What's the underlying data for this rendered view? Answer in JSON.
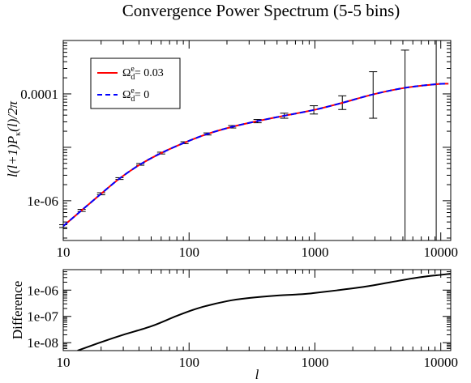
{
  "chart_data": [
    {
      "type": "line",
      "title": "Convergence Power Spectrum (5-5 bins)",
      "xlabel": "",
      "ylabel": "l(l+1)P_κ(l)/2π",
      "xscale": "log",
      "yscale": "log",
      "xlim": [
        10,
        12000
      ],
      "ylim": [
        1.8e-07,
        0.001
      ],
      "x_tick_labels": [
        "10",
        "100",
        "1000",
        "10000"
      ],
      "y_tick_labels": [
        "1e-06",
        "0.0001"
      ],
      "legend": {
        "placement": "top-left",
        "entries": [
          {
            "label": "Ω_d^e = 0.03",
            "color": "#ff0000",
            "style": "solid"
          },
          {
            "label": "Ω_d^e = 0",
            "color": "#0000ff",
            "style": "dashed"
          }
        ]
      },
      "series": [
        {
          "label": "Ω_d^e = 0.03",
          "color": "#ff0000",
          "style": "solid",
          "x": [
            10,
            14,
            20,
            28,
            41,
            60,
            92,
            140,
            220,
            350,
            570,
            980,
            1650,
            2900,
            5200,
            9200,
            11500
          ],
          "y": [
            3.35e-07,
            6.6e-07,
            1.35e-06,
            2.6e-06,
            4.8e-06,
            7.8e-06,
            1.22e-05,
            1.78e-05,
            2.42e-05,
            3.1e-05,
            3.9e-05,
            5e-05,
            6.8e-05,
            9.8e-05,
            0.00013,
            0.000152,
            0.000155
          ]
        },
        {
          "label": "Ω_d^e = 0",
          "color": "#0000ff",
          "style": "dashed",
          "x": [
            10,
            14,
            20,
            28,
            41,
            60,
            92,
            140,
            220,
            350,
            570,
            980,
            1650,
            2900,
            5200,
            9200,
            11500
          ],
          "y": [
            3.35e-07,
            6.6e-07,
            1.35e-06,
            2.6e-06,
            4.8e-06,
            7.8e-06,
            1.22e-05,
            1.78e-05,
            2.42e-05,
            3.1e-05,
            3.9e-05,
            5e-05,
            6.8e-05,
            9.8e-05,
            0.00013,
            0.000152,
            0.000155
          ]
        }
      ],
      "error_bars": [
        {
          "x": 10,
          "y": 3.35e-07,
          "lo": 3.15e-07,
          "hi": 3.55e-07
        },
        {
          "x": 14,
          "y": 6.6e-07,
          "lo": 6.3e-07,
          "hi": 6.9e-07
        },
        {
          "x": 20,
          "y": 1.35e-06,
          "lo": 1.29e-06,
          "hi": 1.41e-06
        },
        {
          "x": 28,
          "y": 2.6e-06,
          "lo": 2.5e-06,
          "hi": 2.7e-06
        },
        {
          "x": 41,
          "y": 4.8e-06,
          "lo": 4.62e-06,
          "hi": 4.98e-06
        },
        {
          "x": 60,
          "y": 7.8e-06,
          "lo": 7.5e-06,
          "hi": 8.1e-06
        },
        {
          "x": 92,
          "y": 1.22e-05,
          "lo": 1.17e-05,
          "hi": 1.27e-05
        },
        {
          "x": 140,
          "y": 1.78e-05,
          "lo": 1.7e-05,
          "hi": 1.86e-05
        },
        {
          "x": 220,
          "y": 2.42e-05,
          "lo": 2.3e-05,
          "hi": 2.55e-05
        },
        {
          "x": 350,
          "y": 3.1e-05,
          "lo": 2.88e-05,
          "hi": 3.32e-05
        },
        {
          "x": 570,
          "y": 3.9e-05,
          "lo": 3.5e-05,
          "hi": 4.35e-05
        },
        {
          "x": 980,
          "y": 5e-05,
          "lo": 4.2e-05,
          "hi": 6e-05
        },
        {
          "x": 1650,
          "y": 6.8e-05,
          "lo": 5.1e-05,
          "hi": 9.2e-05
        },
        {
          "x": 2900,
          "y": 9.8e-05,
          "lo": 3.5e-05,
          "hi": 0.00026
        },
        {
          "x": 5200,
          "y": 0.00013,
          "lo": 1.8e-07,
          "hi": 0.00066
        },
        {
          "x": 9200,
          "y": 0.000152,
          "lo": 1.8e-07,
          "hi": 0.001
        }
      ]
    },
    {
      "type": "line",
      "xlabel": "l",
      "ylabel": "Difference",
      "xscale": "log",
      "yscale": "log",
      "xlim": [
        10,
        12000
      ],
      "ylim": [
        5e-09,
        6e-06
      ],
      "x_tick_labels": [
        "10",
        "100",
        "1000",
        "10000"
      ],
      "y_tick_labels": [
        "1e-08",
        "1e-07",
        "1e-06"
      ],
      "series": [
        {
          "color": "#000000",
          "style": "solid",
          "x": [
            13,
            20,
            30,
            50,
            80,
            120,
            200,
            300,
            500,
            800,
            1000,
            1500,
            2500,
            4000,
            6000,
            8000,
            10000,
            12000
          ],
          "y": [
            5e-09,
            1.05e-08,
            2e-08,
            4.2e-08,
            1.05e-07,
            2.1e-07,
            3.8e-07,
            5e-07,
            6.2e-07,
            7e-07,
            7.8e-07,
            9.8e-07,
            1.35e-06,
            2e-06,
            2.8e-06,
            3.4e-06,
            3.8e-06,
            4.2e-06
          ]
        }
      ]
    }
  ]
}
